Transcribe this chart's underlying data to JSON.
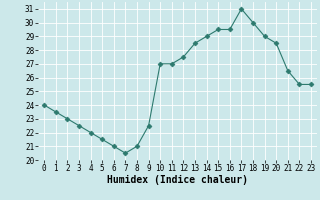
{
  "x": [
    0,
    1,
    2,
    3,
    4,
    5,
    6,
    7,
    8,
    9,
    10,
    11,
    12,
    13,
    14,
    15,
    16,
    17,
    18,
    19,
    20,
    21,
    22,
    23
  ],
  "y": [
    24.0,
    23.5,
    23.0,
    22.5,
    22.0,
    21.5,
    21.0,
    20.5,
    21.0,
    22.5,
    27.0,
    27.0,
    27.5,
    28.5,
    29.0,
    29.5,
    29.5,
    31.0,
    30.0,
    29.0,
    28.5,
    26.5,
    25.5,
    25.5
  ],
  "xlabel": "Humidex (Indice chaleur)",
  "xlim": [
    -0.5,
    23.5
  ],
  "ylim": [
    20,
    31.5
  ],
  "yticks": [
    20,
    21,
    22,
    23,
    24,
    25,
    26,
    27,
    28,
    29,
    30,
    31
  ],
  "xticks": [
    0,
    1,
    2,
    3,
    4,
    5,
    6,
    7,
    8,
    9,
    10,
    11,
    12,
    13,
    14,
    15,
    16,
    17,
    18,
    19,
    20,
    21,
    22,
    23
  ],
  "line_color": "#2d7a6e",
  "marker": "D",
  "marker_size": 2.5,
  "bg_color": "#cce8ea",
  "grid_color": "#ffffff",
  "tick_label_fontsize": 5.5,
  "xlabel_fontsize": 7.0
}
